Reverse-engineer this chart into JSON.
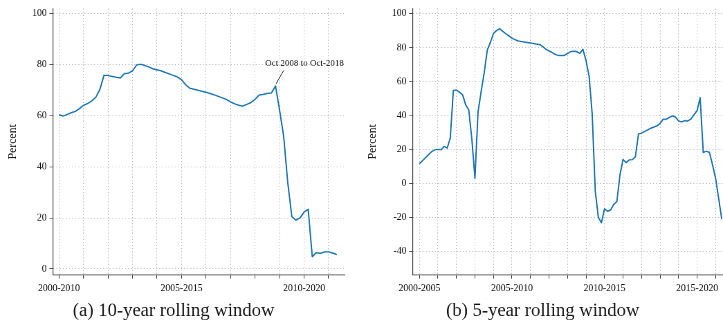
{
  "chart_data": [
    {
      "type": "line",
      "title": "(a) 10-year rolling window",
      "ylabel": "Percent",
      "color": "#1f77b4",
      "grid": true,
      "categories": [
        "2000-2010",
        null,
        null,
        null,
        null,
        null,
        null,
        null,
        null,
        null,
        null,
        null,
        null,
        null,
        null,
        null,
        null,
        null,
        null,
        null,
        null,
        null,
        null,
        null,
        null,
        null,
        null,
        null,
        null,
        null,
        "2005-2015",
        null,
        null,
        null,
        null,
        null,
        null,
        null,
        null,
        null,
        null,
        null,
        null,
        null,
        null,
        null,
        null,
        null,
        null,
        null,
        null,
        null,
        null,
        null,
        null,
        null,
        null,
        null,
        null,
        null,
        "2010-2020",
        null,
        null,
        null,
        null,
        null,
        null,
        null,
        null
      ],
      "values": [
        60.4,
        59.9,
        60.5,
        61.2,
        61.7,
        62.8,
        64.1,
        64.8,
        65.8,
        67.2,
        70.3,
        75.8,
        75.8,
        75.4,
        75.1,
        74.8,
        76.5,
        76.7,
        77.6,
        79.9,
        80.2,
        79.7,
        79.1,
        78.4,
        78,
        77.6,
        77,
        76.4,
        75.8,
        75.2,
        74.1,
        72.2,
        70.8,
        70.4,
        70,
        69.6,
        69.2,
        68.7,
        68.2,
        67.6,
        67,
        66.4,
        65.4,
        64.7,
        64.1,
        63.8,
        64.5,
        65.2,
        66.5,
        68.1,
        68.4,
        68.8,
        68.9,
        71.7,
        62.2,
        52,
        33.8,
        20.5,
        19.1,
        20,
        22.3,
        23.4,
        4.8,
        6.4,
        6.1,
        6.7,
        6.7,
        6.2,
        5.6
      ],
      "ylim": [
        -2.4,
        102
      ],
      "yticks": [
        0,
        20,
        40,
        60,
        80,
        100
      ],
      "annotations": [
        "Oct 2008 to Oct-2018"
      ]
    },
    {
      "type": "line",
      "title": "(b) 5-year rolling window",
      "ylabel": "Percent",
      "color": "#1f77b4",
      "grid": true,
      "categories": [
        "2000-2005",
        null,
        null,
        null,
        null,
        null,
        null,
        null,
        null,
        null,
        null,
        null,
        null,
        null,
        null,
        null,
        null,
        null,
        null,
        null,
        null,
        null,
        null,
        null,
        null,
        null,
        null,
        null,
        null,
        null,
        "2005-2010",
        null,
        null,
        null,
        null,
        null,
        null,
        null,
        null,
        null,
        null,
        null,
        null,
        null,
        null,
        null,
        null,
        null,
        null,
        null,
        null,
        null,
        null,
        null,
        null,
        null,
        null,
        null,
        null,
        null,
        "2010-2015",
        null,
        null,
        null,
        null,
        null,
        null,
        null,
        null,
        null,
        null,
        null,
        null,
        null,
        null,
        null,
        null,
        null,
        null,
        null,
        null,
        null,
        null,
        null,
        null,
        null,
        null,
        null,
        null,
        null,
        "2015-2020",
        null,
        null,
        null,
        null,
        null,
        null,
        null,
        null
      ],
      "values": [
        11.6,
        13.4,
        15.2,
        17,
        18.8,
        19.8,
        20.1,
        19.8,
        21.8,
        20.8,
        26.7,
        54.8,
        55,
        53.7,
        52.2,
        46.3,
        43.3,
        26,
        3,
        42,
        54,
        65.2,
        78.6,
        83,
        88.3,
        90.1,
        91.1,
        89.6,
        88.2,
        86.9,
        85.6,
        84.7,
        83.9,
        83.6,
        83.3,
        83,
        82.7,
        82.4,
        82.1,
        81.8,
        80.6,
        79,
        78.1,
        77.1,
        76,
        75.4,
        75.4,
        75.4,
        76.5,
        77.6,
        77.9,
        77.6,
        76.6,
        79,
        72.3,
        63.3,
        41,
        -4.5,
        -20,
        -23.2,
        -15,
        -16.4,
        -15.6,
        -12.3,
        -10.7,
        5,
        14.1,
        12.2,
        13.8,
        14,
        15.7,
        29.1,
        29.7,
        30.6,
        31.5,
        32.5,
        33.2,
        33.9,
        35.3,
        37.8,
        37.8,
        38.8,
        39.8,
        39.1,
        36.8,
        36.2,
        37,
        36.8,
        37.9,
        40.4,
        42.9,
        50.5,
        18.3,
        18.9,
        18.3,
        11,
        3,
        -8.9,
        -21
      ],
      "ylim": [
        -54,
        103
      ],
      "yticks": [
        -40,
        -20,
        0,
        20,
        40,
        60,
        80,
        100
      ]
    }
  ]
}
